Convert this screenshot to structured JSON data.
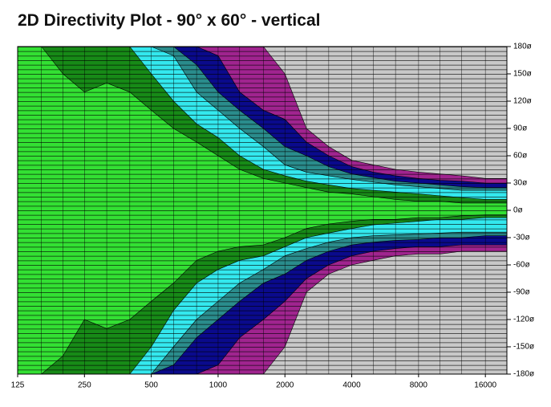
{
  "chart_data": {
    "type": "contour",
    "title": "2D Directivity Plot - 90° x 60° - vertical",
    "xscale": "log",
    "xlim": [
      125,
      20000
    ],
    "ylim": [
      -180,
      180
    ],
    "background": "#c8c8c8",
    "xticks": [
      125,
      250,
      500,
      1000,
      2000,
      4000,
      8000,
      16000
    ],
    "yticks": [
      {
        "value": 180,
        "label": "180ø"
      },
      {
        "value": 150,
        "label": "150ø"
      },
      {
        "value": 120,
        "label": "120ø"
      },
      {
        "value": 90,
        "label": "90ø"
      },
      {
        "value": 60,
        "label": "60ø"
      },
      {
        "value": 30,
        "label": "30ø"
      },
      {
        "value": 0,
        "label": "0ø"
      },
      {
        "value": -30,
        "label": "-30ø"
      },
      {
        "value": -60,
        "label": "-60ø"
      },
      {
        "value": -90,
        "label": "-90ø"
      },
      {
        "value": -120,
        "label": "-120ø"
      },
      {
        "value": -150,
        "label": "-150ø"
      },
      {
        "value": -180,
        "label": "-180ø"
      }
    ],
    "x": [
      125,
      160,
      200,
      250,
      315,
      400,
      500,
      630,
      800,
      1000,
      1250,
      1600,
      2000,
      2500,
      3150,
      4000,
      5000,
      6300,
      8000,
      10000,
      12500,
      16000,
      20000
    ],
    "series": [
      {
        "color": "#a0248f",
        "upper": [
          180,
          180,
          180,
          180,
          180,
          180,
          180,
          180,
          180,
          180,
          180,
          180,
          150,
          90,
          70,
          55,
          50,
          45,
          42,
          40,
          38,
          35,
          35
        ],
        "lower": [
          -180,
          -180,
          -180,
          -180,
          -180,
          -180,
          -180,
          -180,
          -180,
          -180,
          -180,
          -180,
          -150,
          -90,
          -70,
          -60,
          -55,
          -50,
          -48,
          -48,
          -45,
          -45,
          -45
        ]
      },
      {
        "color": "#0a0a8c",
        "upper": [
          180,
          180,
          180,
          180,
          180,
          180,
          180,
          180,
          180,
          170,
          130,
          110,
          100,
          75,
          60,
          48,
          42,
          38,
          35,
          33,
          32,
          30,
          30
        ],
        "lower": [
          -180,
          -180,
          -180,
          -180,
          -180,
          -180,
          -180,
          -180,
          -180,
          -170,
          -140,
          -120,
          -100,
          -75,
          -60,
          -50,
          -45,
          -42,
          -40,
          -40,
          -38,
          -38,
          -38
        ]
      },
      {
        "color": "#2a8c8c",
        "upper": [
          180,
          180,
          180,
          180,
          180,
          180,
          180,
          180,
          160,
          130,
          110,
          90,
          70,
          60,
          48,
          40,
          36,
          32,
          30,
          28,
          26,
          25,
          25
        ],
        "lower": [
          -180,
          -180,
          -180,
          -180,
          -180,
          -180,
          -180,
          -170,
          -140,
          -120,
          -100,
          -80,
          -70,
          -55,
          -45,
          -38,
          -35,
          -33,
          -32,
          -30,
          -30,
          -28,
          -28
        ]
      },
      {
        "color": "#33e8ee",
        "upper": [
          180,
          180,
          180,
          180,
          180,
          180,
          180,
          170,
          130,
          110,
          90,
          70,
          50,
          42,
          38,
          34,
          31,
          28,
          26,
          24,
          22,
          22,
          22
        ],
        "lower": [
          -180,
          -180,
          -180,
          -180,
          -180,
          -180,
          -180,
          -150,
          -120,
          -100,
          -80,
          -65,
          -50,
          -42,
          -35,
          -30,
          -28,
          -27,
          -26,
          -25,
          -24,
          -24,
          -24
        ]
      },
      {
        "color": "#178a17",
        "upper": [
          180,
          180,
          180,
          180,
          180,
          180,
          150,
          120,
          95,
          80,
          60,
          45,
          38,
          32,
          28,
          24,
          22,
          20,
          18,
          16,
          14,
          12,
          12
        ],
        "lower": [
          -180,
          -180,
          -180,
          -180,
          -180,
          -180,
          -150,
          -110,
          -80,
          -65,
          -55,
          -50,
          -40,
          -30,
          -25,
          -20,
          -16,
          -14,
          -12,
          -10,
          -10,
          -8,
          -8
        ]
      },
      {
        "color": "#33e033",
        "upper": [
          180,
          180,
          150,
          130,
          140,
          130,
          110,
          90,
          75,
          60,
          45,
          35,
          30,
          25,
          20,
          18,
          15,
          12,
          10,
          10,
          8,
          8,
          8
        ],
        "lower": [
          -180,
          -180,
          -160,
          -120,
          -130,
          -120,
          -100,
          -80,
          -55,
          -45,
          -40,
          -38,
          -30,
          -20,
          -15,
          -12,
          -10,
          -10,
          -8,
          -8,
          -6,
          -5,
          -5
        ]
      }
    ]
  }
}
